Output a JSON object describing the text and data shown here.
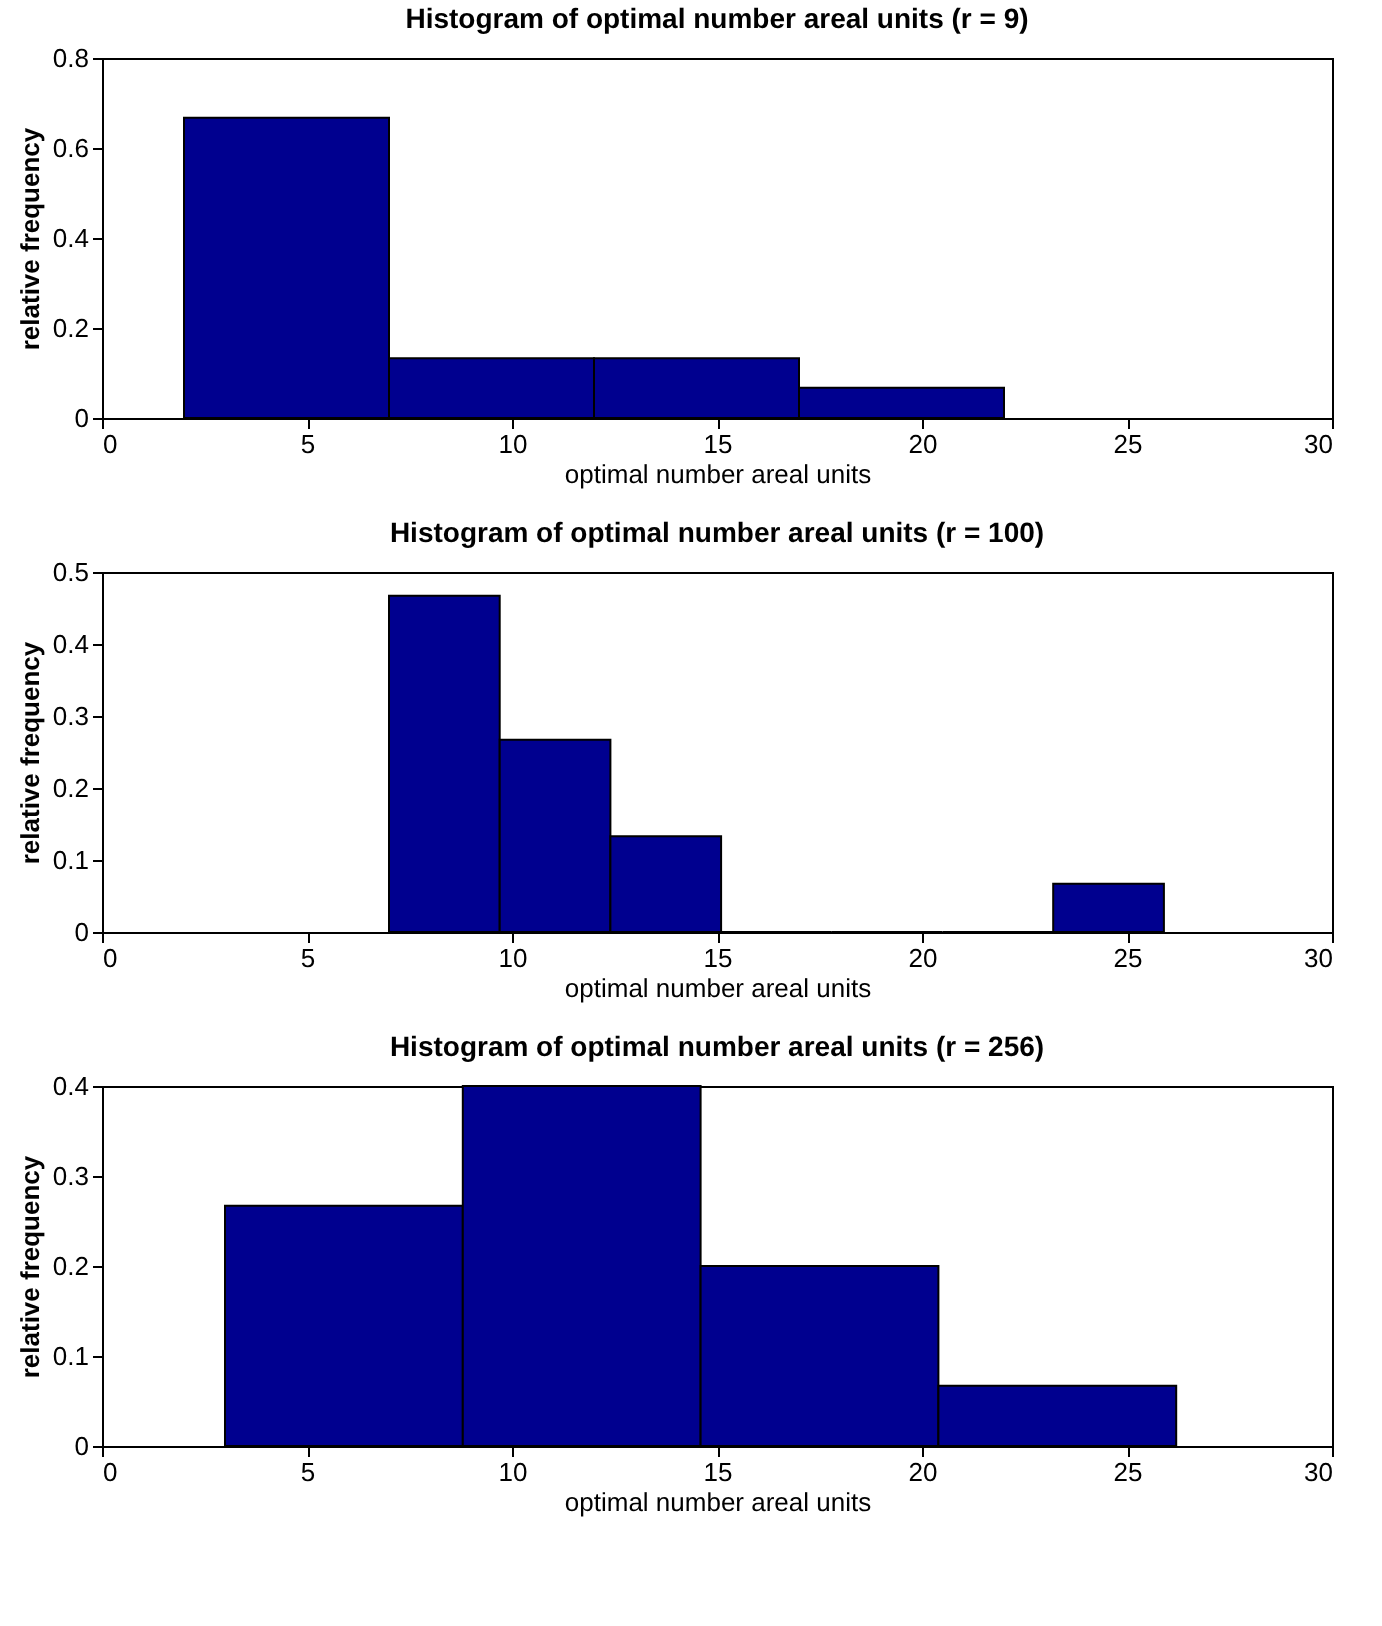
{
  "chart_data": [
    {
      "type": "histogram",
      "title": "Histogram of optimal number areal units (r = 9)",
      "xlabel": "optimal number areal units",
      "ylabel": "relative frequency",
      "bins": [
        2,
        7,
        12,
        17,
        22
      ],
      "values": [
        0.667,
        0.133,
        0.133,
        0.067
      ],
      "color": "#00008f",
      "xlim": [
        0,
        30
      ],
      "xticks": [
        0,
        5,
        10,
        15,
        20,
        25,
        30
      ],
      "ylim": [
        0,
        0.8
      ],
      "yticks": [
        0,
        0.2,
        0.4,
        0.6,
        0.8
      ]
    },
    {
      "type": "histogram",
      "title": "Histogram of optimal number areal units (r = 100)",
      "xlabel": "optimal number areal units",
      "ylabel": "relative frequency",
      "bins": [
        7,
        9.7,
        12.4,
        15.1,
        17.8,
        20.5,
        23.2,
        25.9
      ],
      "values": [
        0.467,
        0.267,
        0.133,
        0,
        0,
        0,
        0.067
      ],
      "color": "#00008f",
      "xlim": [
        0,
        30
      ],
      "xticks": [
        0,
        5,
        10,
        15,
        20,
        25,
        30
      ],
      "ylim": [
        0,
        0.5
      ],
      "yticks": [
        0,
        0.1,
        0.2,
        0.3,
        0.4,
        0.5
      ]
    },
    {
      "type": "histogram",
      "title": "Histogram of optimal number areal units (r = 256)",
      "xlabel": "optimal number areal units",
      "ylabel": "relative frequency",
      "bins": [
        3,
        8.8,
        14.6,
        20.4,
        26.2
      ],
      "values": [
        0.267,
        0.4,
        0.2,
        0.067
      ],
      "color": "#00008f",
      "xlim": [
        0,
        30
      ],
      "xticks": [
        0,
        5,
        10,
        15,
        20,
        25,
        30
      ],
      "ylim": [
        0,
        0.4
      ],
      "yticks": [
        0,
        0.1,
        0.2,
        0.3,
        0.4
      ]
    }
  ]
}
